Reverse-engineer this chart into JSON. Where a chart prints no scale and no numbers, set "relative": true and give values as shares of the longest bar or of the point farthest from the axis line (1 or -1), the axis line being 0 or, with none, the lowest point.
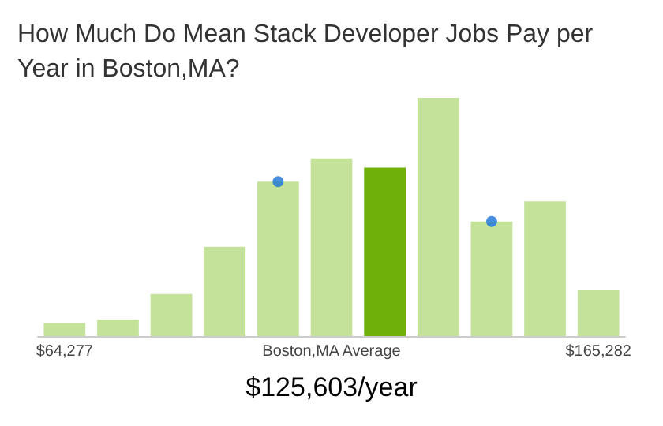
{
  "chart_data": {
    "type": "bar",
    "title": "How Much Do Mean Stack Developer Jobs Pay per Year in Boston,MA?",
    "relative": true,
    "grid": false,
    "categories": [
      "$64,277",
      null,
      null,
      null,
      null,
      "Boston,MA Average",
      null,
      null,
      null,
      null,
      "$165,282"
    ],
    "series": [
      {
        "colors": [
          "#c5e29a",
          "#c5e29a",
          "#c5e29a",
          "#c5e29a",
          "#c5e29a",
          "#c5e29a",
          "#6fb10a",
          "#c5e29a",
          "#c5e29a",
          "#c5e29a",
          "#c5e29a"
        ],
        "values": [
          0.055,
          0.069,
          0.176,
          0.375,
          0.648,
          0.746,
          0.707,
          1,
          0.481,
          0.565,
          0.192
        ]
      },
      {
        "type": "scatter",
        "color": "#1a73d9",
        "marker": "circle",
        "values": [
          null,
          null,
          null,
          null,
          0.648,
          null,
          null,
          null,
          0.481,
          null,
          null
        ]
      }
    ],
    "annotations": [
      "$125,603/year"
    ]
  }
}
